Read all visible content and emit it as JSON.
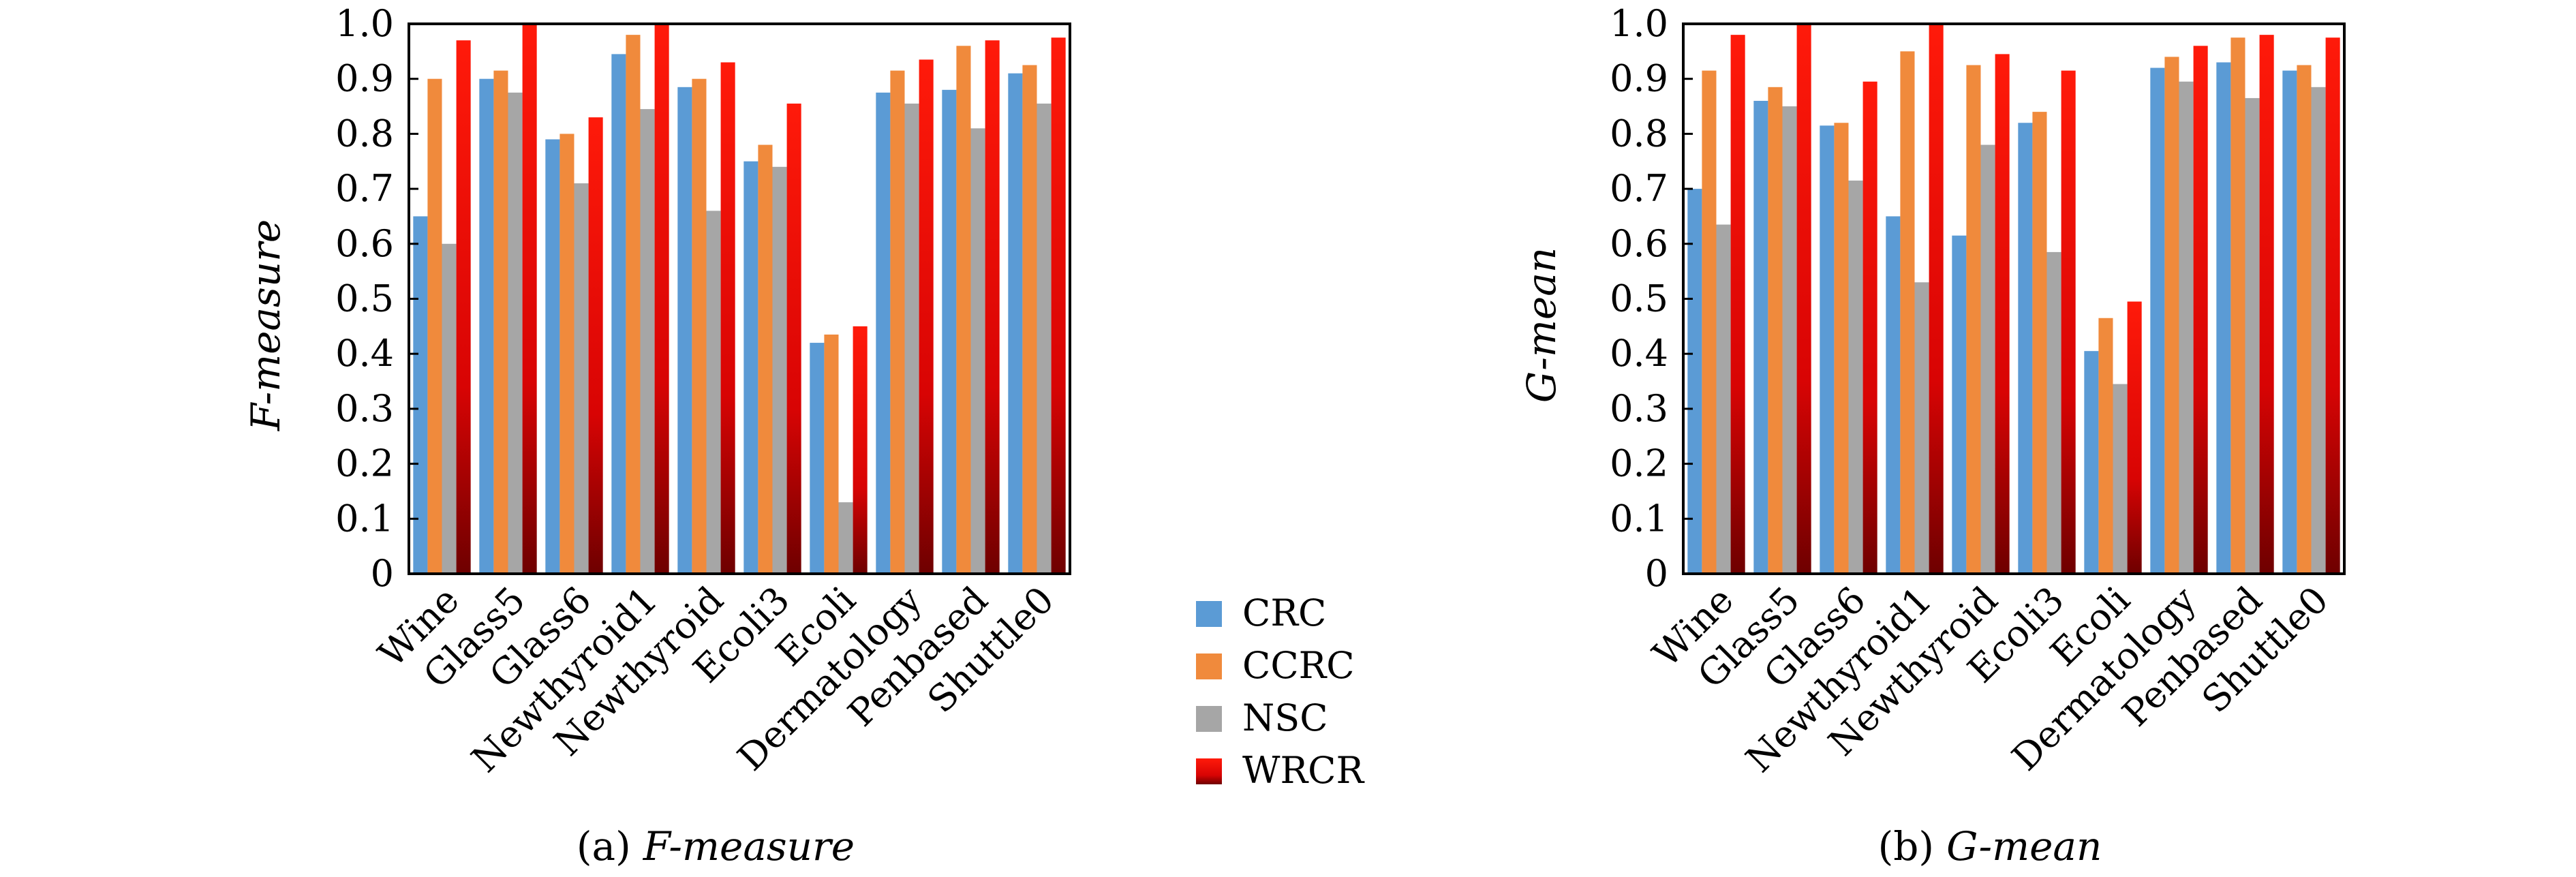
{
  "series_names": [
    "CRC",
    "CCRC",
    "NSC",
    "WRCR"
  ],
  "colors": {
    "CRC": "#5b9bd5",
    "CCRC": "#f08a3c",
    "NSC": "#a6a6a6",
    "WRCR_top": "#ff1a0a",
    "WRCR_bottom": "#6e0000",
    "axis": "#000000"
  },
  "yticks": [
    "0",
    "0.1",
    "0.2",
    "0.3",
    "0.4",
    "0.5",
    "0.6",
    "0.7",
    "0.8",
    "0.9",
    "1.0"
  ],
  "captions": {
    "a_label": "(a)",
    "a_text": "F-measure",
    "b_label": "(b)",
    "b_text": "G-mean"
  },
  "chart_data": [
    {
      "type": "bar",
      "ylabel": "F-measure",
      "ylim": [
        0,
        1.0
      ],
      "grid": false,
      "legend_placement": "right",
      "categories": [
        "Wine",
        "Glass5",
        "Glass6",
        "Newthyroid1",
        "Newthyroid",
        "Ecoli3",
        "Ecoli",
        "Dermatology",
        "Penbased",
        "Shuttle0"
      ],
      "series": [
        {
          "name": "CRC",
          "values": [
            0.65,
            0.9,
            0.79,
            0.945,
            0.885,
            0.75,
            0.42,
            0.875,
            0.88,
            0.91
          ]
        },
        {
          "name": "CCRC",
          "values": [
            0.9,
            0.915,
            0.8,
            0.98,
            0.9,
            0.78,
            0.435,
            0.915,
            0.96,
            0.925
          ]
        },
        {
          "name": "NSC",
          "values": [
            0.6,
            0.875,
            0.71,
            0.845,
            0.66,
            0.74,
            0.13,
            0.855,
            0.81,
            0.855
          ]
        },
        {
          "name": "WRCR",
          "values": [
            0.97,
            1.0,
            0.83,
            1.0,
            0.93,
            0.855,
            0.45,
            0.935,
            0.97,
            0.975
          ]
        }
      ]
    },
    {
      "type": "bar",
      "ylabel": "G-mean",
      "ylim": [
        0,
        1.0
      ],
      "grid": false,
      "legend_placement": "left",
      "categories": [
        "Wine",
        "Glass5",
        "Glass6",
        "Newthyroid1",
        "Newthyroid",
        "Ecoli3",
        "Ecoli",
        "Dermatology",
        "Penbased",
        "Shuttle0"
      ],
      "series": [
        {
          "name": "CRC",
          "values": [
            0.7,
            0.86,
            0.815,
            0.65,
            0.615,
            0.82,
            0.405,
            0.92,
            0.93,
            0.915
          ]
        },
        {
          "name": "CCRC",
          "values": [
            0.915,
            0.885,
            0.82,
            0.95,
            0.925,
            0.84,
            0.465,
            0.94,
            0.975,
            0.925
          ]
        },
        {
          "name": "NSC",
          "values": [
            0.635,
            0.85,
            0.715,
            0.53,
            0.78,
            0.585,
            0.345,
            0.895,
            0.865,
            0.885
          ]
        },
        {
          "name": "WRCR",
          "values": [
            0.98,
            1.0,
            0.895,
            1.0,
            0.945,
            0.915,
            0.495,
            0.96,
            0.98,
            0.975
          ]
        }
      ]
    }
  ]
}
